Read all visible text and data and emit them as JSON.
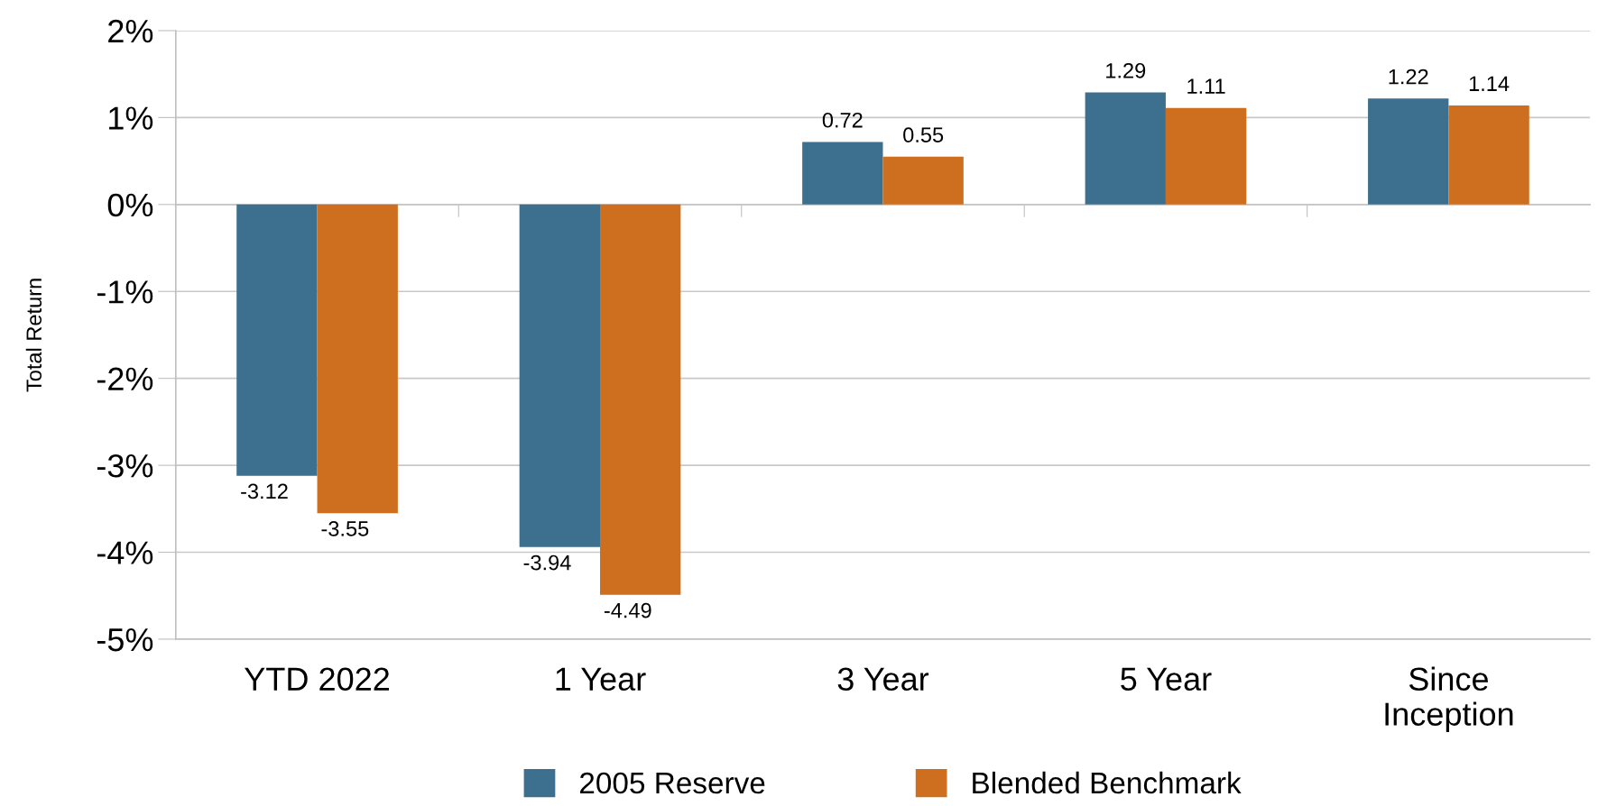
{
  "chart_data": {
    "type": "bar",
    "ylabel": "Total Return",
    "categories": [
      "YTD 2022",
      "1 Year",
      "3 Year",
      "5 Year",
      "Since\nInception"
    ],
    "series": [
      {
        "name": "2005 Reserve",
        "color": "#3d6f8e",
        "values": [
          -3.12,
          -3.94,
          0.72,
          1.29,
          1.22
        ]
      },
      {
        "name": "Blended Benchmark",
        "color": "#cd6f1e",
        "values": [
          -3.55,
          -4.49,
          0.55,
          1.11,
          1.14
        ]
      }
    ],
    "ylim": [
      -5,
      2
    ],
    "yticks": [
      {
        "value": -5,
        "label": "-5%"
      },
      {
        "value": -4,
        "label": "-4%"
      },
      {
        "value": -3,
        "label": "-3%"
      },
      {
        "value": -2,
        "label": "-2%"
      },
      {
        "value": -1,
        "label": "-1%"
      },
      {
        "value": 0,
        "label": "0%"
      },
      {
        "value": 1,
        "label": "1%"
      },
      {
        "value": 2,
        "label": "2%"
      }
    ],
    "grid": "y",
    "legend": "bottom",
    "data_labels": true
  }
}
